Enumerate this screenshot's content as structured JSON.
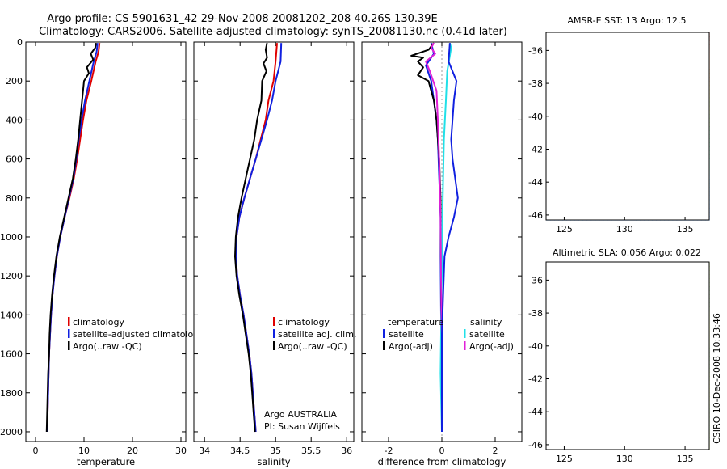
{
  "title_line1": "Argo profile: CS 5901631_42 29-Nov-2008 20081202_208 40.26S 130.39E",
  "title_line2": "Climatology: CARS2006. Satellite-adjusted climatology: synTS_20081130.nc (0.41d later)",
  "side_stamp": "CSIRO 10-Dec-2008 10:33:46",
  "colors": {
    "climatology": "#e00000",
    "satellite": "#1020e0",
    "argo": "#000000",
    "sat_diff_salinity": "#20e0e8",
    "argo_diff_salinity": "#e020d8"
  },
  "chart_data": [
    {
      "type": "line",
      "panel": "temperature",
      "xlabel": "temperature",
      "xlim": [
        -2,
        31
      ],
      "ylim": [
        0,
        2050
      ],
      "y_inverted": true,
      "xticks": [
        "0",
        "10",
        "20",
        "30"
      ],
      "xtick_values": [
        0,
        10,
        20,
        30
      ],
      "yticks": [
        "0",
        "200",
        "400",
        "600",
        "800",
        "1000",
        "1200",
        "1400",
        "1600",
        "1800",
        "2000"
      ],
      "ytick_values": [
        0,
        200,
        400,
        600,
        800,
        1000,
        1200,
        1400,
        1600,
        1800,
        2000
      ],
      "legend": [
        "climatology",
        "satellite-adjusted climatology",
        "Argo(..raw -QC)"
      ],
      "series": [
        {
          "name": "climatology",
          "points": [
            [
              13.2,
              5
            ],
            [
              13.0,
              50
            ],
            [
              12.4,
              100
            ],
            [
              11.5,
              200
            ],
            [
              10.5,
              300
            ],
            [
              9.8,
              400
            ],
            [
              9.2,
              500
            ],
            [
              8.6,
              600
            ],
            [
              7.9,
              700
            ],
            [
              7.0,
              800
            ],
            [
              6.0,
              900
            ],
            [
              5.1,
              1000
            ],
            [
              4.4,
              1100
            ],
            [
              3.9,
              1200
            ],
            [
              3.5,
              1300
            ],
            [
              3.2,
              1400
            ],
            [
              3.0,
              1500
            ],
            [
              2.8,
              1600
            ],
            [
              2.7,
              1700
            ],
            [
              2.6,
              1800
            ],
            [
              2.5,
              1900
            ],
            [
              2.4,
              2000
            ]
          ]
        },
        {
          "name": "satellite-adjusted climatology",
          "points": [
            [
              12.8,
              5
            ],
            [
              12.6,
              50
            ],
            [
              12.0,
              100
            ],
            [
              11.1,
              200
            ],
            [
              10.2,
              300
            ],
            [
              9.5,
              400
            ],
            [
              8.9,
              500
            ],
            [
              8.4,
              600
            ],
            [
              7.8,
              700
            ],
            [
              6.9,
              800
            ],
            [
              6.0,
              900
            ],
            [
              5.1,
              1000
            ],
            [
              4.4,
              1100
            ],
            [
              3.9,
              1200
            ],
            [
              3.5,
              1300
            ],
            [
              3.2,
              1400
            ],
            [
              3.0,
              1500
            ],
            [
              2.8,
              1600
            ],
            [
              2.7,
              1700
            ],
            [
              2.6,
              1800
            ],
            [
              2.5,
              1900
            ],
            [
              2.4,
              2000
            ]
          ]
        },
        {
          "name": "Argo(..raw -QC)",
          "points": [
            [
              12.5,
              5
            ],
            [
              12.3,
              30
            ],
            [
              11.4,
              60
            ],
            [
              11.9,
              90
            ],
            [
              10.6,
              130
            ],
            [
              11.0,
              160
            ],
            [
              10.0,
              200
            ],
            [
              9.6,
              300
            ],
            [
              9.2,
              400
            ],
            [
              8.8,
              500
            ],
            [
              8.3,
              600
            ],
            [
              7.7,
              700
            ],
            [
              6.8,
              800
            ],
            [
              5.9,
              900
            ],
            [
              5.0,
              1000
            ],
            [
              4.3,
              1100
            ],
            [
              3.8,
              1200
            ],
            [
              3.4,
              1300
            ],
            [
              3.1,
              1400
            ],
            [
              2.9,
              1500
            ],
            [
              2.8,
              1600
            ],
            [
              2.6,
              1700
            ],
            [
              2.5,
              1800
            ],
            [
              2.4,
              1900
            ],
            [
              2.3,
              2000
            ]
          ]
        }
      ]
    },
    {
      "type": "line",
      "panel": "salinity",
      "xlabel": "salinity",
      "xlim": [
        33.85,
        36.1
      ],
      "ylim": [
        0,
        2050
      ],
      "y_inverted": true,
      "xticks": [
        "34",
        "34.5",
        "35",
        "35.5",
        "36"
      ],
      "xtick_values": [
        34,
        34.5,
        35,
        35.5,
        36
      ],
      "legend": [
        "climatology",
        "satellite adj. clim.",
        "Argo(..raw -QC)"
      ],
      "annotation": [
        "Argo AUSTRALIA",
        "PI: Susan Wijffels"
      ],
      "series": [
        {
          "name": "climatology",
          "points": [
            [
              35.02,
              5
            ],
            [
              35.0,
              100
            ],
            [
              34.97,
              200
            ],
            [
              34.9,
              300
            ],
            [
              34.86,
              400
            ],
            [
              34.79,
              500
            ],
            [
              34.72,
              600
            ],
            [
              34.64,
              700
            ],
            [
              34.56,
              800
            ],
            [
              34.49,
              900
            ],
            [
              34.45,
              1000
            ],
            [
              34.44,
              1100
            ],
            [
              34.46,
              1200
            ],
            [
              34.5,
              1300
            ],
            [
              34.55,
              1400
            ],
            [
              34.59,
              1500
            ],
            [
              34.63,
              1600
            ],
            [
              34.66,
              1700
            ],
            [
              34.68,
              1800
            ],
            [
              34.7,
              1900
            ],
            [
              34.72,
              2000
            ]
          ]
        },
        {
          "name": "satellite adj. clim.",
          "points": [
            [
              35.08,
              5
            ],
            [
              35.07,
              100
            ],
            [
              35.0,
              200
            ],
            [
              34.95,
              300
            ],
            [
              34.88,
              400
            ],
            [
              34.8,
              500
            ],
            [
              34.72,
              600
            ],
            [
              34.64,
              700
            ],
            [
              34.56,
              800
            ],
            [
              34.49,
              900
            ],
            [
              34.45,
              1000
            ],
            [
              34.44,
              1100
            ],
            [
              34.46,
              1200
            ],
            [
              34.5,
              1300
            ],
            [
              34.55,
              1400
            ],
            [
              34.59,
              1500
            ],
            [
              34.63,
              1600
            ],
            [
              34.66,
              1700
            ],
            [
              34.68,
              1800
            ],
            [
              34.7,
              1900
            ],
            [
              34.72,
              2000
            ]
          ]
        },
        {
          "name": "Argo(..raw -QC)",
          "points": [
            [
              34.88,
              5
            ],
            [
              34.86,
              40
            ],
            [
              34.88,
              80
            ],
            [
              34.83,
              110
            ],
            [
              34.87,
              150
            ],
            [
              34.81,
              200
            ],
            [
              34.8,
              300
            ],
            [
              34.74,
              400
            ],
            [
              34.7,
              500
            ],
            [
              34.64,
              600
            ],
            [
              34.58,
              700
            ],
            [
              34.52,
              800
            ],
            [
              34.47,
              900
            ],
            [
              34.44,
              1000
            ],
            [
              34.43,
              1100
            ],
            [
              34.45,
              1200
            ],
            [
              34.49,
              1300
            ],
            [
              34.54,
              1400
            ],
            [
              34.58,
              1500
            ],
            [
              34.62,
              1600
            ],
            [
              34.65,
              1700
            ],
            [
              34.67,
              1800
            ],
            [
              34.69,
              1900
            ],
            [
              34.71,
              2000
            ]
          ]
        }
      ]
    },
    {
      "type": "line",
      "panel": "difference",
      "xlabel": "difference from climatology",
      "xlim": [
        -3,
        3
      ],
      "ylim": [
        0,
        2050
      ],
      "y_inverted": true,
      "xticks": [
        "-2",
        "0",
        "2"
      ],
      "xtick_values": [
        -2,
        0,
        2
      ],
      "legend_headers": [
        "temperature",
        "salinity"
      ],
      "legend": [
        "satellite",
        "Argo(-adj)",
        "satellite",
        "Argo(-adj)"
      ],
      "series": [
        {
          "name": "temperature satellite",
          "points": [
            [
              -0.4,
              5
            ],
            [
              -0.3,
              60
            ],
            [
              -0.6,
              120
            ],
            [
              -0.4,
              200
            ],
            [
              -0.3,
              300
            ],
            [
              -0.2,
              400
            ],
            [
              -0.15,
              500
            ],
            [
              -0.1,
              700
            ],
            [
              -0.05,
              900
            ],
            [
              -0.05,
              1100
            ],
            [
              -0.03,
              1400
            ],
            [
              0,
              1700
            ],
            [
              0,
              2000
            ]
          ]
        },
        {
          "name": "temperature Argo(-adj)",
          "points": [
            [
              -0.3,
              5
            ],
            [
              -0.5,
              40
            ],
            [
              -1.15,
              70
            ],
            [
              -0.7,
              80
            ],
            [
              -0.9,
              100
            ],
            [
              -0.7,
              130
            ],
            [
              -0.9,
              170
            ],
            [
              -0.5,
              200
            ],
            [
              -0.3,
              300
            ],
            [
              -0.2,
              400
            ],
            [
              -0.1,
              600
            ],
            [
              -0.05,
              800
            ],
            [
              -0.04,
              1000
            ],
            [
              -0.02,
              1300
            ],
            [
              0,
              1600
            ],
            [
              0,
              2000
            ]
          ]
        },
        {
          "name": "salinity satellite",
          "points": [
            [
              0.3,
              5
            ],
            [
              0.35,
              30
            ],
            [
              0.3,
              70
            ],
            [
              0.2,
              150
            ],
            [
              0.15,
              300
            ],
            [
              0.08,
              500
            ],
            [
              0.05,
              700
            ],
            [
              0.02,
              900
            ],
            [
              0,
              1200
            ],
            [
              -0.03,
              1500
            ],
            [
              -0.05,
              1700
            ],
            [
              0,
              2000
            ]
          ]
        },
        {
          "name": "salinity Argo(-adj)",
          "points": [
            [
              -0.3,
              5
            ],
            [
              -0.4,
              30
            ],
            [
              -0.25,
              60
            ],
            [
              -0.6,
              100
            ],
            [
              -0.45,
              150
            ],
            [
              -0.2,
              250
            ],
            [
              -0.15,
              400
            ],
            [
              -0.1,
              600
            ],
            [
              -0.05,
              900
            ],
            [
              -0.03,
              1200
            ],
            [
              0,
              1500
            ],
            [
              0,
              2000
            ]
          ]
        },
        {
          "name": "satellite minus climatology",
          "points": [
            [
              0.3,
              5
            ],
            [
              0.25,
              100
            ],
            [
              0.4,
              150
            ],
            [
              0.55,
              200
            ],
            [
              0.45,
              300
            ],
            [
              0.4,
              400
            ],
            [
              0.35,
              500
            ],
            [
              0.4,
              600
            ],
            [
              0.5,
              700
            ],
            [
              0.6,
              800
            ],
            [
              0.45,
              900
            ],
            [
              0.25,
              1000
            ],
            [
              0.1,
              1100
            ],
            [
              0.05,
              1300
            ],
            [
              0,
              1500
            ],
            [
              0,
              2000
            ]
          ]
        }
      ]
    },
    {
      "type": "heatmap",
      "panel": "AMSR-E SST",
      "title": "AMSR-E SST: 13 Argo: 12.5",
      "xlim": [
        123.5,
        137
      ],
      "ylim": [
        -46.3,
        -34.9
      ],
      "xticks": [
        "125",
        "130",
        "135"
      ],
      "xtick_values": [
        125,
        130,
        135
      ],
      "yticks": [
        "-36",
        "-38",
        "-40",
        "-42",
        "-44",
        "-46"
      ],
      "ytick_values": [
        -36,
        -38,
        -40,
        -42,
        -44,
        -46
      ],
      "profile_location": [
        130.39,
        -40.26
      ]
    },
    {
      "type": "heatmap",
      "panel": "Altimetric SLA",
      "title": "Altimetric SLA: 0.056 Argo: 0.022",
      "xlim": [
        123.5,
        137
      ],
      "ylim": [
        -46.3,
        -34.9
      ],
      "xticks": [
        "125",
        "130",
        "135"
      ],
      "xtick_values": [
        125,
        130,
        135
      ],
      "yticks": [
        "-36",
        "-38",
        "-40",
        "-42",
        "-44",
        "-46"
      ],
      "ytick_values": [
        -36,
        -38,
        -40,
        -42,
        -44,
        -46
      ],
      "profile_location": [
        130.39,
        -40.26
      ]
    }
  ]
}
